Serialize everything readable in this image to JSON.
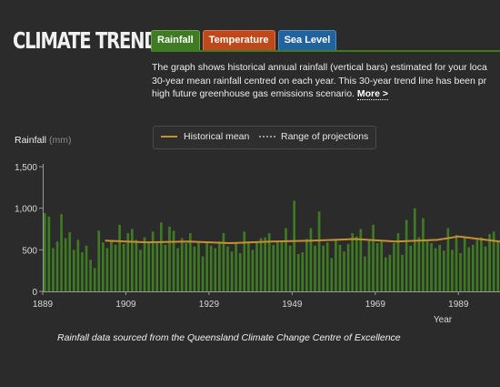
{
  "header": {
    "title": "CLIMATE TRENDS"
  },
  "tabs": [
    {
      "label": "Rainfall",
      "active": true,
      "color": "#3e7b22"
    },
    {
      "label": "Temperature",
      "active": false,
      "color": "#c0491b"
    },
    {
      "label": "Sea Level",
      "active": false,
      "color": "#21639f"
    }
  ],
  "description": {
    "lines": [
      "The graph shows historical annual rainfall (vertical bars) estimated for your loca",
      "30-year mean rainfall centred on each year. This 30-year trend line has been pr",
      "high future greenhouse gas emissions scenario."
    ],
    "more_label": "More >"
  },
  "legend": {
    "historical_mean": "Historical mean",
    "range_of_projections": "Range of projections"
  },
  "source_note": "Rainfall data sourced from the Queensland Climate Change Centre of Excellence",
  "chart_data": {
    "type": "bar",
    "ylabel": "Rainfall",
    "yunit": "(mm)",
    "xlabel": "Year",
    "ylim": [
      0,
      1500
    ],
    "yticks": [
      0,
      500,
      "1,000",
      "1,500"
    ],
    "xticks": [
      1889,
      1909,
      1929,
      1949,
      1969,
      1989
    ],
    "xlim": [
      1889,
      1999
    ],
    "bar_color": "#3e7b22",
    "mean_color": "#c8902e",
    "grid": false,
    "legend_position": "top",
    "years_start": 1889,
    "series": [
      {
        "kind": "bars",
        "values": [
          940,
          900,
          520,
          600,
          930,
          640,
          710,
          500,
          620,
          470,
          550,
          380,
          280,
          730,
          590,
          520,
          600,
          560,
          800,
          570,
          700,
          750,
          620,
          500,
          650,
          600,
          720,
          600,
          830,
          560,
          780,
          730,
          520,
          640,
          580,
          700,
          540,
          600,
          420,
          580,
          550,
          520,
          600,
          700,
          540,
          480,
          580,
          460,
          720,
          600,
          500,
          590,
          640,
          650,
          700,
          560,
          600,
          610,
          760,
          550,
          1090,
          450,
          470,
          630,
          760,
          550,
          960,
          550,
          590,
          400,
          620,
          560,
          480,
          570,
          700,
          660,
          750,
          420,
          610,
          800,
          580,
          600,
          410,
          440,
          580,
          700,
          440,
          860,
          550,
          1000,
          650,
          880,
          620,
          580,
          520,
          560,
          490,
          760,
          500,
          680,
          460,
          650,
          530,
          560,
          620,
          650,
          540,
          690,
          720,
          600,
          520
        ],
        "start_year": 1889
      },
      {
        "name": "Historical mean",
        "kind": "line",
        "x": [
          1904,
          1914,
          1924,
          1934,
          1944,
          1954,
          1964,
          1974,
          1984,
          1989,
          1999
        ],
        "values": [
          610,
          590,
          600,
          580,
          600,
          610,
          630,
          600,
          620,
          660,
          600
        ]
      }
    ]
  }
}
